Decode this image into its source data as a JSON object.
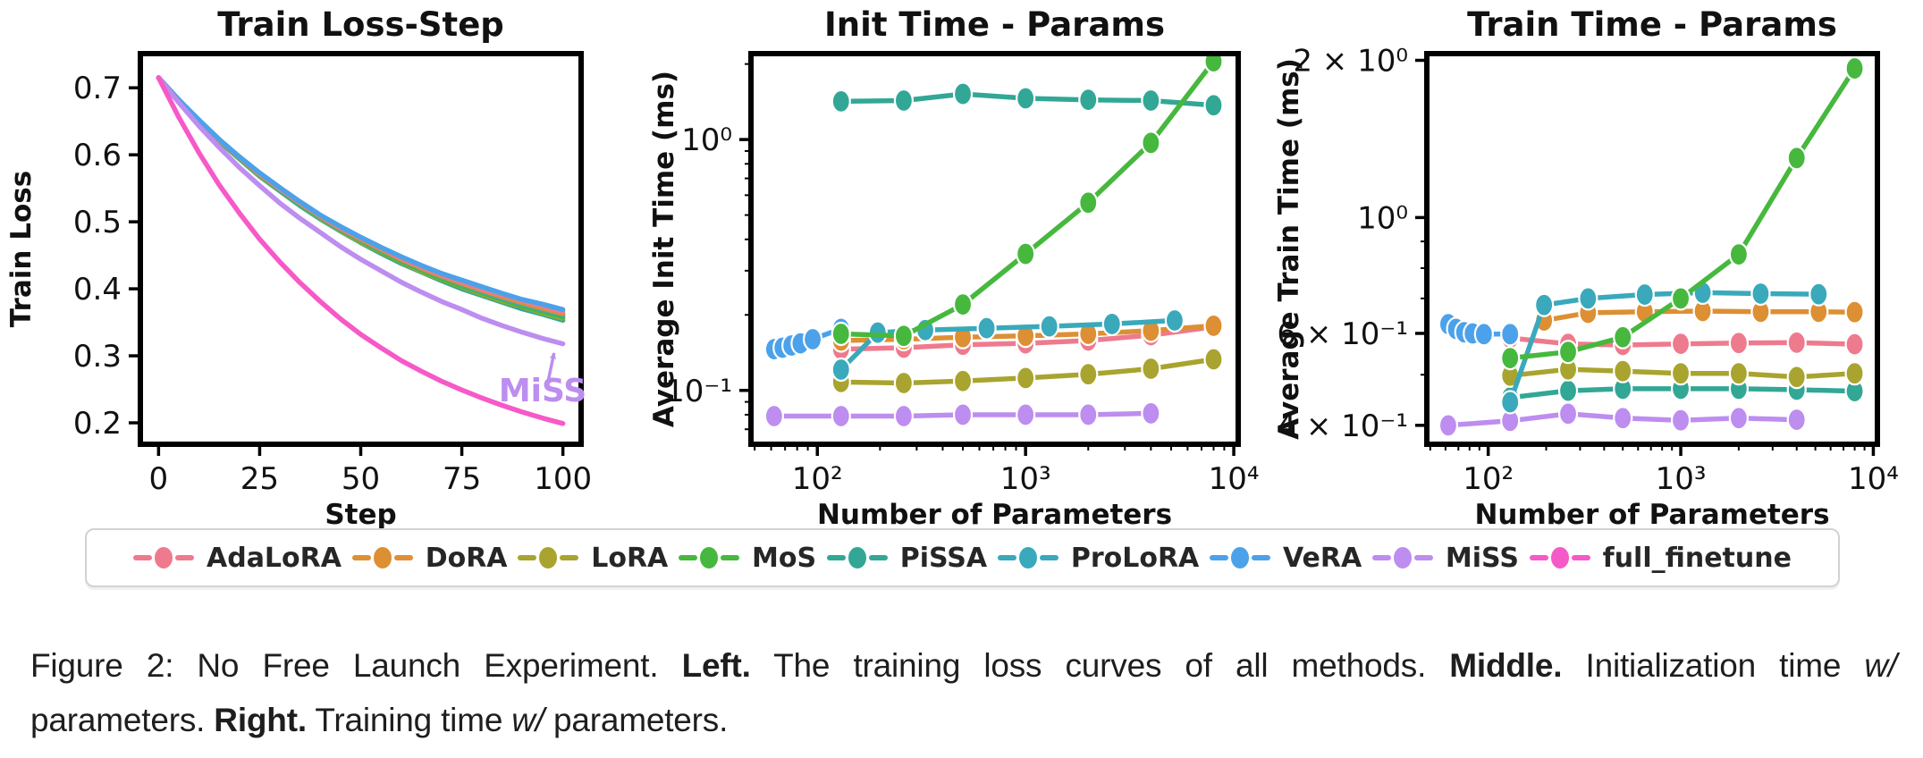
{
  "methods": [
    {
      "name": "AdaLoRA",
      "color": "#ee7a8e"
    },
    {
      "name": "DoRA",
      "color": "#dd8f33"
    },
    {
      "name": "LoRA",
      "color": "#a8a42f"
    },
    {
      "name": "MoS",
      "color": "#46b83e"
    },
    {
      "name": "PiSSA",
      "color": "#32a796"
    },
    {
      "name": "ProLoRA",
      "color": "#39a9bb"
    },
    {
      "name": "VeRA",
      "color": "#4ba2ea"
    },
    {
      "name": "MiSS",
      "color": "#bd8def"
    },
    {
      "name": "full_finetune",
      "color": "#f659c8"
    }
  ],
  "chart_data": [
    {
      "type": "line",
      "title": "Train Loss-Step",
      "xlabel": "Step",
      "ylabel": "Train Loss",
      "xscale": "linear",
      "yscale": "linear",
      "xlim": [
        -4.5,
        104.5
      ],
      "ylim": [
        0.168,
        0.751
      ],
      "xticks": {
        "v": [
          0,
          25,
          50,
          75,
          100
        ],
        "labels": [
          "0",
          "25",
          "50",
          "75",
          "100"
        ]
      },
      "yticks": {
        "v": [
          0.2,
          0.3,
          0.4,
          0.5,
          0.6,
          0.7
        ],
        "labels": [
          "0.2",
          "0.3",
          "0.4",
          "0.5",
          "0.6",
          "0.7"
        ]
      },
      "x": [
        0,
        5,
        10,
        15,
        20,
        25,
        30,
        35,
        40,
        45,
        50,
        55,
        60,
        65,
        70,
        75,
        80,
        85,
        90,
        95,
        100
      ],
      "markers": false,
      "series": [
        {
          "name": "PiSSA",
          "values": [
            0.715,
            0.681,
            0.65,
            0.62,
            0.594,
            0.568,
            0.546,
            0.524,
            0.504,
            0.486,
            0.469,
            0.453,
            0.438,
            0.425,
            0.412,
            0.4,
            0.39,
            0.38,
            0.37,
            0.362,
            0.353
          ]
        },
        {
          "name": "LoRA",
          "values": [
            0.715,
            0.681,
            0.65,
            0.621,
            0.595,
            0.569,
            0.547,
            0.526,
            0.505,
            0.487,
            0.47,
            0.455,
            0.44,
            0.426,
            0.414,
            0.403,
            0.392,
            0.382,
            0.373,
            0.364,
            0.356
          ]
        },
        {
          "name": "MoS",
          "values": [
            0.715,
            0.682,
            0.65,
            0.621,
            0.595,
            0.57,
            0.547,
            0.526,
            0.506,
            0.488,
            0.472,
            0.456,
            0.441,
            0.428,
            0.415,
            0.404,
            0.394,
            0.384,
            0.374,
            0.366,
            0.358
          ]
        },
        {
          "name": "ProLoRA",
          "values": [
            0.715,
            0.682,
            0.651,
            0.622,
            0.596,
            0.571,
            0.548,
            0.527,
            0.507,
            0.489,
            0.473,
            0.458,
            0.443,
            0.43,
            0.418,
            0.407,
            0.396,
            0.386,
            0.377,
            0.369,
            0.361
          ]
        },
        {
          "name": "DoRA",
          "values": [
            0.715,
            0.682,
            0.651,
            0.622,
            0.596,
            0.571,
            0.549,
            0.528,
            0.508,
            0.49,
            0.474,
            0.459,
            0.444,
            0.431,
            0.419,
            0.408,
            0.398,
            0.388,
            0.379,
            0.371,
            0.363
          ]
        },
        {
          "name": "AdaLoRA",
          "values": [
            0.715,
            0.682,
            0.651,
            0.622,
            0.597,
            0.572,
            0.55,
            0.529,
            0.509,
            0.491,
            0.476,
            0.461,
            0.446,
            0.433,
            0.421,
            0.41,
            0.4,
            0.391,
            0.382,
            0.374,
            0.366
          ]
        },
        {
          "name": "VeRA",
          "values": [
            0.715,
            0.682,
            0.652,
            0.623,
            0.597,
            0.573,
            0.551,
            0.53,
            0.51,
            0.493,
            0.477,
            0.462,
            0.448,
            0.435,
            0.423,
            0.413,
            0.403,
            0.393,
            0.384,
            0.377,
            0.369
          ]
        },
        {
          "name": "MiSS",
          "values": [
            0.715,
            0.678,
            0.643,
            0.611,
            0.581,
            0.554,
            0.528,
            0.505,
            0.484,
            0.463,
            0.444,
            0.427,
            0.41,
            0.395,
            0.381,
            0.369,
            0.356,
            0.345,
            0.335,
            0.326,
            0.318
          ]
        },
        {
          "name": "full_finetune",
          "values": [
            0.715,
            0.656,
            0.603,
            0.555,
            0.513,
            0.474,
            0.44,
            0.409,
            0.381,
            0.355,
            0.332,
            0.312,
            0.293,
            0.277,
            0.262,
            0.249,
            0.237,
            0.226,
            0.216,
            0.207,
            0.199
          ]
        }
      ],
      "annotation": {
        "text": "MiSS",
        "text_x": 95.0,
        "text_y": 0.232,
        "arrow_from_x": 96.2,
        "arrow_from_y": 0.258,
        "arrow_to_x": 97.8,
        "arrow_to_y": 0.304
      }
    },
    {
      "type": "line",
      "title": "Init Time - Params",
      "xlabel": "Number of Parameters",
      "ylabel": "Average Init Time (ms)",
      "xscale": "log",
      "yscale": "log",
      "xlim": [
        48,
        10500
      ],
      "ylim": [
        0.061,
        2.2
      ],
      "xticks": {
        "v": [
          100,
          1000,
          10000
        ],
        "labels": [
          "10²",
          "10³",
          "10⁴"
        ]
      },
      "yticks": {
        "v": [
          0.1,
          1
        ],
        "labels": [
          "10⁻¹",
          "10⁰"
        ]
      },
      "markers": true,
      "series": [
        {
          "name": "MiSS",
          "x": [
            62,
            130,
            260,
            500,
            1000,
            2000,
            4000
          ],
          "values": [
            0.079,
            0.079,
            0.079,
            0.08,
            0.08,
            0.08,
            0.081
          ]
        },
        {
          "name": "LoRA",
          "x": [
            130,
            260,
            500,
            1000,
            2000,
            4000,
            8000
          ],
          "values": [
            0.108,
            0.107,
            0.109,
            0.112,
            0.116,
            0.122,
            0.133
          ]
        },
        {
          "name": "AdaLoRA",
          "x": [
            130,
            260,
            500,
            1000,
            2000,
            4000,
            8000
          ],
          "values": [
            0.146,
            0.148,
            0.152,
            0.154,
            0.158,
            0.166,
            0.179
          ]
        },
        {
          "name": "DoRA",
          "x": [
            130,
            260,
            500,
            1000,
            2000,
            4000,
            8000
          ],
          "values": [
            0.158,
            0.16,
            0.163,
            0.165,
            0.168,
            0.173,
            0.181
          ]
        },
        {
          "name": "ProLoRA",
          "x": [
            130,
            195,
            330,
            650,
            1300,
            2600,
            5200
          ],
          "values": [
            0.121,
            0.17,
            0.174,
            0.177,
            0.18,
            0.184,
            0.19
          ]
        },
        {
          "name": "VeRA",
          "x": [
            62,
            68,
            75,
            83,
            95,
            130
          ],
          "values": [
            0.146,
            0.148,
            0.151,
            0.154,
            0.16,
            0.176
          ]
        },
        {
          "name": "PiSSA",
          "x": [
            130,
            260,
            500,
            1000,
            2000,
            4000,
            8000
          ],
          "values": [
            1.42,
            1.43,
            1.52,
            1.46,
            1.44,
            1.43,
            1.37
          ]
        },
        {
          "name": "MoS",
          "x": [
            130,
            260,
            500,
            1000,
            2000,
            4000,
            8000
          ],
          "values": [
            0.168,
            0.165,
            0.22,
            0.35,
            0.56,
            0.97,
            2.05
          ]
        }
      ]
    },
    {
      "type": "line",
      "title": "Train Time - Params",
      "xlabel": "Number of Parameters",
      "ylabel": "Average Train Time (ms)",
      "xscale": "log",
      "yscale": "log",
      "xlim": [
        48,
        10500
      ],
      "ylim": [
        0.368,
        2.06
      ],
      "xticks": {
        "v": [
          100,
          1000,
          10000
        ],
        "labels": [
          "10²",
          "10³",
          "10⁴"
        ]
      },
      "yticks": {
        "v": [
          0.4,
          0.6,
          1,
          2
        ],
        "labels": [
          "4 × 10⁻¹",
          "6 × 10⁻¹",
          "10⁰",
          "2 × 10⁰"
        ]
      },
      "markers": true,
      "series": [
        {
          "name": "MiSS",
          "x": [
            62,
            130,
            260,
            500,
            1000,
            2000,
            4000
          ],
          "values": [
            0.4,
            0.408,
            0.421,
            0.413,
            0.409,
            0.413,
            0.41
          ]
        },
        {
          "name": "PiSSA",
          "x": [
            130,
            260,
            500,
            1000,
            2000,
            4000,
            8000
          ],
          "values": [
            0.452,
            0.466,
            0.47,
            0.47,
            0.47,
            0.468,
            0.465
          ]
        },
        {
          "name": "LoRA",
          "x": [
            130,
            260,
            500,
            1000,
            2000,
            4000,
            8000
          ],
          "values": [
            0.498,
            0.512,
            0.508,
            0.503,
            0.503,
            0.495,
            0.503
          ]
        },
        {
          "name": "AdaLoRA",
          "x": [
            130,
            260,
            500,
            1000,
            2000,
            4000,
            8000
          ],
          "values": [
            0.588,
            0.573,
            0.57,
            0.573,
            0.575,
            0.576,
            0.572
          ]
        },
        {
          "name": "VeRA",
          "x": [
            62,
            68,
            75,
            83,
            95,
            130
          ],
          "values": [
            0.625,
            0.612,
            0.603,
            0.6,
            0.598,
            0.598
          ]
        },
        {
          "name": "DoRA",
          "x": [
            195,
            330,
            650,
            1300,
            2600,
            5200,
            8000
          ],
          "values": [
            0.635,
            0.657,
            0.66,
            0.662,
            0.66,
            0.66,
            0.659
          ]
        },
        {
          "name": "ProLoRA",
          "x": [
            130,
            195,
            330,
            650,
            1300,
            2600,
            5200
          ],
          "values": [
            0.443,
            0.68,
            0.7,
            0.712,
            0.718,
            0.715,
            0.713
          ]
        },
        {
          "name": "MoS",
          "x": [
            130,
            260,
            500,
            1000,
            2000,
            4000,
            8000
          ],
          "values": [
            0.538,
            0.553,
            0.59,
            0.7,
            0.85,
            1.3,
            1.93
          ]
        }
      ]
    }
  ],
  "legend": {
    "items": [
      "AdaLoRA",
      "DoRA",
      "LoRA",
      "MoS",
      "PiSSA",
      "ProLoRA",
      "VeRA",
      "MiSS",
      "full_finetune"
    ]
  },
  "caption": {
    "line1": [
      {
        "t": "Figure 2: No Free Launch Experiment. "
      },
      {
        "t": "Left.",
        "b": true
      },
      {
        "t": " The training loss curves of all methods. "
      },
      {
        "t": "Middle.",
        "b": true
      },
      {
        "t": " Initialization time "
      },
      {
        "t": "w/",
        "i": true
      }
    ],
    "line2": [
      {
        "t": "parameters. "
      },
      {
        "t": "Right.",
        "b": true
      },
      {
        "t": " Training time "
      },
      {
        "t": "w/",
        "i": true
      },
      {
        "t": " parameters."
      }
    ]
  }
}
